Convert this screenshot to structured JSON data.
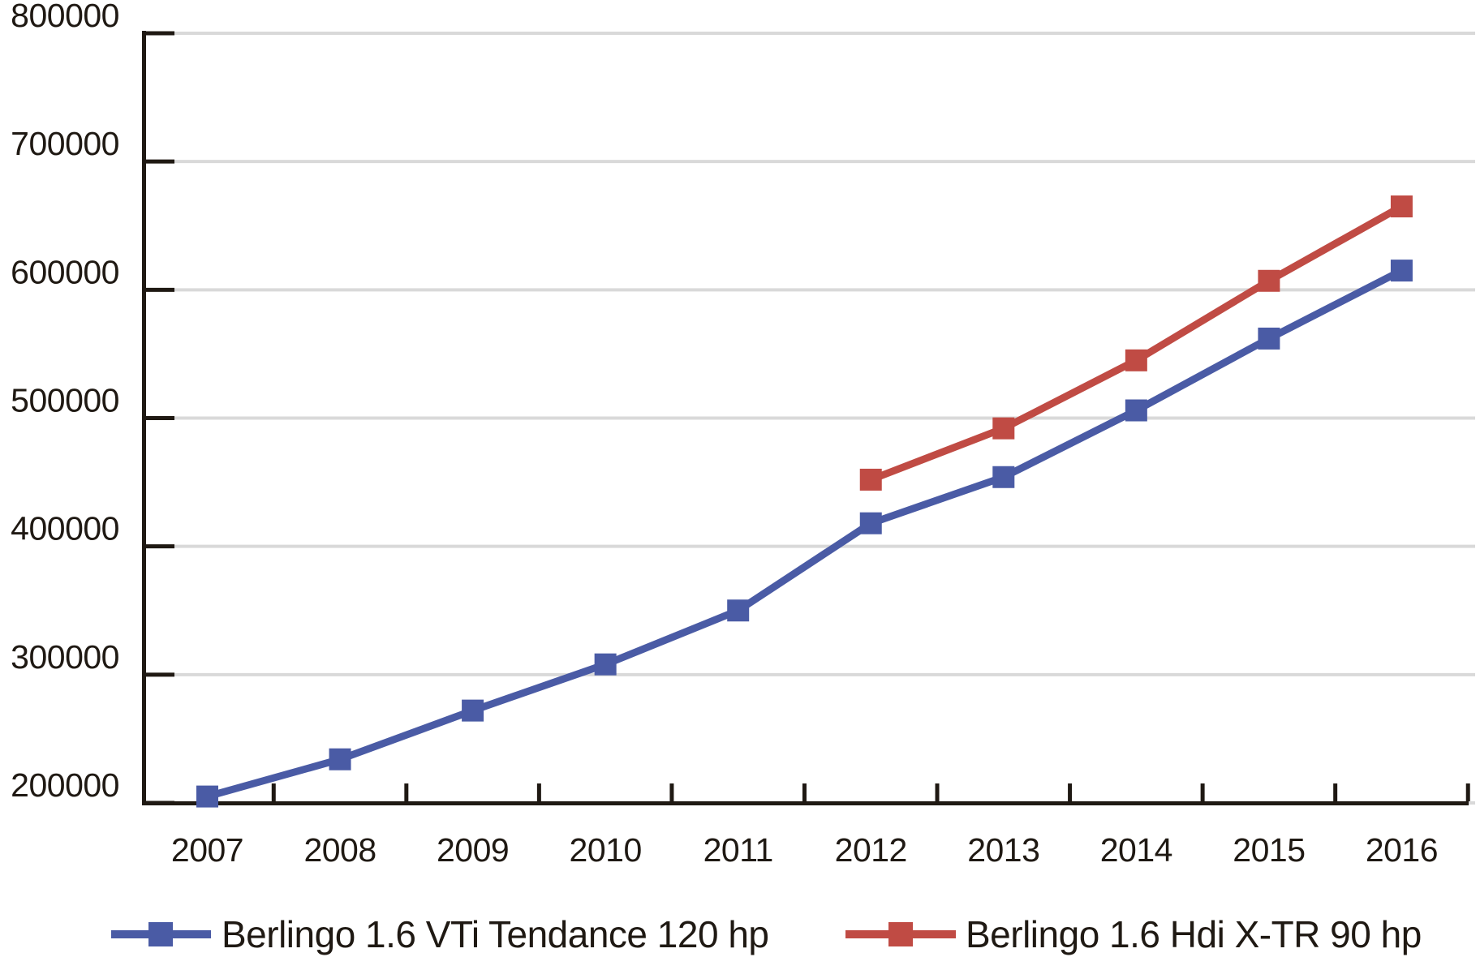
{
  "chart_data": {
    "type": "line",
    "title": "",
    "xlabel": "",
    "ylabel": "",
    "x_categories": [
      "2007",
      "2008",
      "2009",
      "2010",
      "2011",
      "2012",
      "2013",
      "2014",
      "2015",
      "2016"
    ],
    "y_ticks": [
      "200000",
      "300000",
      "400000",
      "500000",
      "600000",
      "700000",
      "800000"
    ],
    "ylim": [
      200000,
      800000
    ],
    "grid": "horizontal-on",
    "legend_position": "bottom",
    "colors": {
      "series_blue": "#4A5BA5",
      "series_red": "#C04B44",
      "gridline": "#D9D9D9",
      "axis": "#1F1913",
      "background": "#FFFFFF"
    },
    "series": [
      {
        "name": "Berlingo 1.6 VTi Tendance 120 hp",
        "color": "#4A5BA5",
        "marker": "square",
        "x": [
          "2007",
          "2008",
          "2009",
          "2010",
          "2011",
          "2012",
          "2013",
          "2014",
          "2015",
          "2016"
        ],
        "values": [
          205000,
          234000,
          272000,
          308000,
          350000,
          418000,
          454000,
          506000,
          562000,
          615000
        ]
      },
      {
        "name": "Berlingo 1.6 Hdi X-TR 90 hp",
        "color": "#C04B44",
        "marker": "square",
        "x": [
          "2012",
          "2013",
          "2014",
          "2015",
          "2016"
        ],
        "values": [
          452000,
          492000,
          545000,
          607000,
          665000
        ]
      }
    ]
  }
}
